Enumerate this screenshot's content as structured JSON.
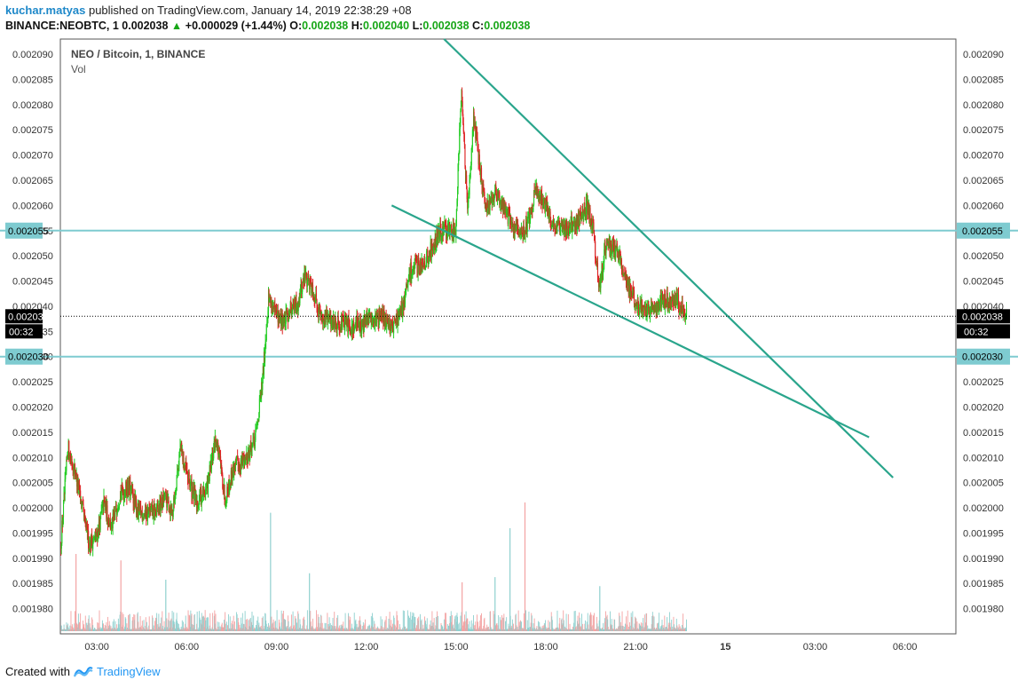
{
  "header": {
    "author": "kuchar.matyas",
    "published_text": "published on TradingView.com, January 14, 2019 22:38:29 +08",
    "symbol": "BINANCE:NEOBTC, 1",
    "last": "0.002038",
    "change_arrow": "▲",
    "change": "+0.000029 (+1.44%)",
    "o_label": "O:",
    "o_value": "0.002038",
    "h_label": "H:",
    "h_value": "0.002040",
    "l_label": "L:",
    "l_value": "0.002038",
    "c_label": "C:",
    "c_value": "0.002038"
  },
  "legend": {
    "title": "NEO / Bitcoin, 1, BINANCE",
    "volume_label": "Vol"
  },
  "footer": {
    "created_with": "Created with",
    "brand": "TradingView",
    "logo_icon": "tradingview-logo-icon"
  },
  "colors": {
    "up": "#22cc22",
    "down": "#dd2222",
    "vol_up": "#8fd0cf",
    "vol_down": "#f3a3a3",
    "trendline": "#2aa58c",
    "hline": "#7ecbd0",
    "label_bg": "#7ecbd0",
    "last_bg": "#000000"
  },
  "chart_data": {
    "type": "candlestick",
    "title": "NEO / Bitcoin, 1, BINANCE",
    "ylim": [
      0.001975,
      0.002093
    ],
    "y_ticks": [
      "0.001980",
      "0.001985",
      "0.001990",
      "0.001995",
      "0.002000",
      "0.002005",
      "0.002010",
      "0.002015",
      "0.002020",
      "0.002025",
      "0.002030",
      "0.002035",
      "0.002040",
      "0.002045",
      "0.002050",
      "0.002055",
      "0.002060",
      "0.002065",
      "0.002070",
      "0.002075",
      "0.002080",
      "0.002085",
      "0.002090"
    ],
    "x_ticks": [
      {
        "label": "03:00",
        "hour": 3
      },
      {
        "label": "06:00",
        "hour": 6
      },
      {
        "label": "09:00",
        "hour": 9
      },
      {
        "label": "12:00",
        "hour": 12
      },
      {
        "label": "15:00",
        "hour": 15
      },
      {
        "label": "18:00",
        "hour": 18
      },
      {
        "label": "21:00",
        "hour": 21
      },
      {
        "label": "15",
        "hour": 24,
        "bold": true
      },
      {
        "label": "03:00",
        "hour": 27
      },
      {
        "label": "06:00",
        "hour": 30
      }
    ],
    "x_range_hours": [
      1.78,
      31.7
    ],
    "price_path": [
      [
        1.8,
        0.001992
      ],
      [
        2.05,
        0.002012
      ],
      [
        2.3,
        0.002007
      ],
      [
        2.55,
        0.001999
      ],
      [
        2.75,
        0.001993
      ],
      [
        3.0,
        0.001994
      ],
      [
        3.25,
        0.002001
      ],
      [
        3.5,
        0.001996
      ],
      [
        3.8,
        0.002003
      ],
      [
        4.1,
        0.002004
      ],
      [
        4.4,
        0.001999
      ],
      [
        4.7,
        0.001999
      ],
      [
        5.0,
        0.001999
      ],
      [
        5.3,
        0.002002
      ],
      [
        5.55,
        0.001999
      ],
      [
        5.8,
        0.002012
      ],
      [
        6.05,
        0.002006
      ],
      [
        6.35,
        0.002001
      ],
      [
        6.7,
        0.002004
      ],
      [
        7.0,
        0.002014
      ],
      [
        7.3,
        0.002002
      ],
      [
        7.6,
        0.002008
      ],
      [
        8.0,
        0.00201
      ],
      [
        8.3,
        0.002013
      ],
      [
        8.55,
        0.002025
      ],
      [
        8.75,
        0.002042
      ],
      [
        9.0,
        0.002038
      ],
      [
        9.3,
        0.002037
      ],
      [
        9.5,
        0.00204
      ],
      [
        9.7,
        0.00204
      ],
      [
        9.95,
        0.002046
      ],
      [
        10.2,
        0.002044
      ],
      [
        10.5,
        0.002038
      ],
      [
        11.0,
        0.002037
      ],
      [
        11.5,
        0.002036
      ],
      [
        12.0,
        0.002037
      ],
      [
        12.5,
        0.002038
      ],
      [
        12.9,
        0.002036
      ],
      [
        13.2,
        0.002039
      ],
      [
        13.5,
        0.002047
      ],
      [
        14.0,
        0.002049
      ],
      [
        14.5,
        0.002055
      ],
      [
        15.0,
        0.002055
      ],
      [
        15.1,
        0.00207
      ],
      [
        15.2,
        0.002083
      ],
      [
        15.4,
        0.002058
      ],
      [
        15.6,
        0.002078
      ],
      [
        15.8,
        0.002068
      ],
      [
        16.0,
        0.002059
      ],
      [
        16.3,
        0.002063
      ],
      [
        16.6,
        0.00206
      ],
      [
        16.9,
        0.002056
      ],
      [
        17.2,
        0.002054
      ],
      [
        17.5,
        0.002058
      ],
      [
        17.7,
        0.002064
      ],
      [
        17.9,
        0.002061
      ],
      [
        18.2,
        0.002057
      ],
      [
        18.5,
        0.002055
      ],
      [
        18.8,
        0.002056
      ],
      [
        19.1,
        0.002057
      ],
      [
        19.4,
        0.00206
      ],
      [
        19.6,
        0.002055
      ],
      [
        19.8,
        0.002043
      ],
      [
        20.0,
        0.002052
      ],
      [
        20.4,
        0.002051
      ],
      [
        20.7,
        0.002045
      ],
      [
        21.0,
        0.002041
      ],
      [
        21.3,
        0.002039
      ],
      [
        21.6,
        0.00204
      ],
      [
        22.0,
        0.002041
      ],
      [
        22.4,
        0.002041
      ],
      [
        22.7,
        0.002038
      ]
    ],
    "volume_spikes": [
      {
        "hour": 2.3,
        "ratio": 0.6,
        "dir": "down"
      },
      {
        "hour": 3.8,
        "ratio": 0.55,
        "dir": "down"
      },
      {
        "hour": 5.3,
        "ratio": 0.4,
        "dir": "up"
      },
      {
        "hour": 8.8,
        "ratio": 0.92,
        "dir": "up"
      },
      {
        "hour": 10.1,
        "ratio": 0.45,
        "dir": "up"
      },
      {
        "hour": 15.2,
        "ratio": 0.38,
        "dir": "down"
      },
      {
        "hour": 16.3,
        "ratio": 0.42,
        "dir": "up"
      },
      {
        "hour": 16.8,
        "ratio": 0.8,
        "dir": "up"
      },
      {
        "hour": 17.3,
        "ratio": 1.0,
        "dir": "down"
      },
      {
        "hour": 19.8,
        "ratio": 0.35,
        "dir": "up"
      }
    ],
    "trendlines": [
      {
        "name": "upper-trendline",
        "from": [
          14.6,
          0.002093
        ],
        "to": [
          29.6,
          0.002006
        ]
      },
      {
        "name": "lower-trendline",
        "from": [
          12.85,
          0.00206
        ],
        "to": [
          28.8,
          0.002014
        ]
      }
    ],
    "horizontal_lines": [
      {
        "name": "resistance-line",
        "value": 0.002055,
        "label": "0.002055"
      },
      {
        "name": "support-line",
        "value": 0.00203,
        "label": "0.002030"
      }
    ],
    "last_price": {
      "value": 0.002038,
      "label": "0.002038",
      "countdown": "00:32"
    }
  }
}
